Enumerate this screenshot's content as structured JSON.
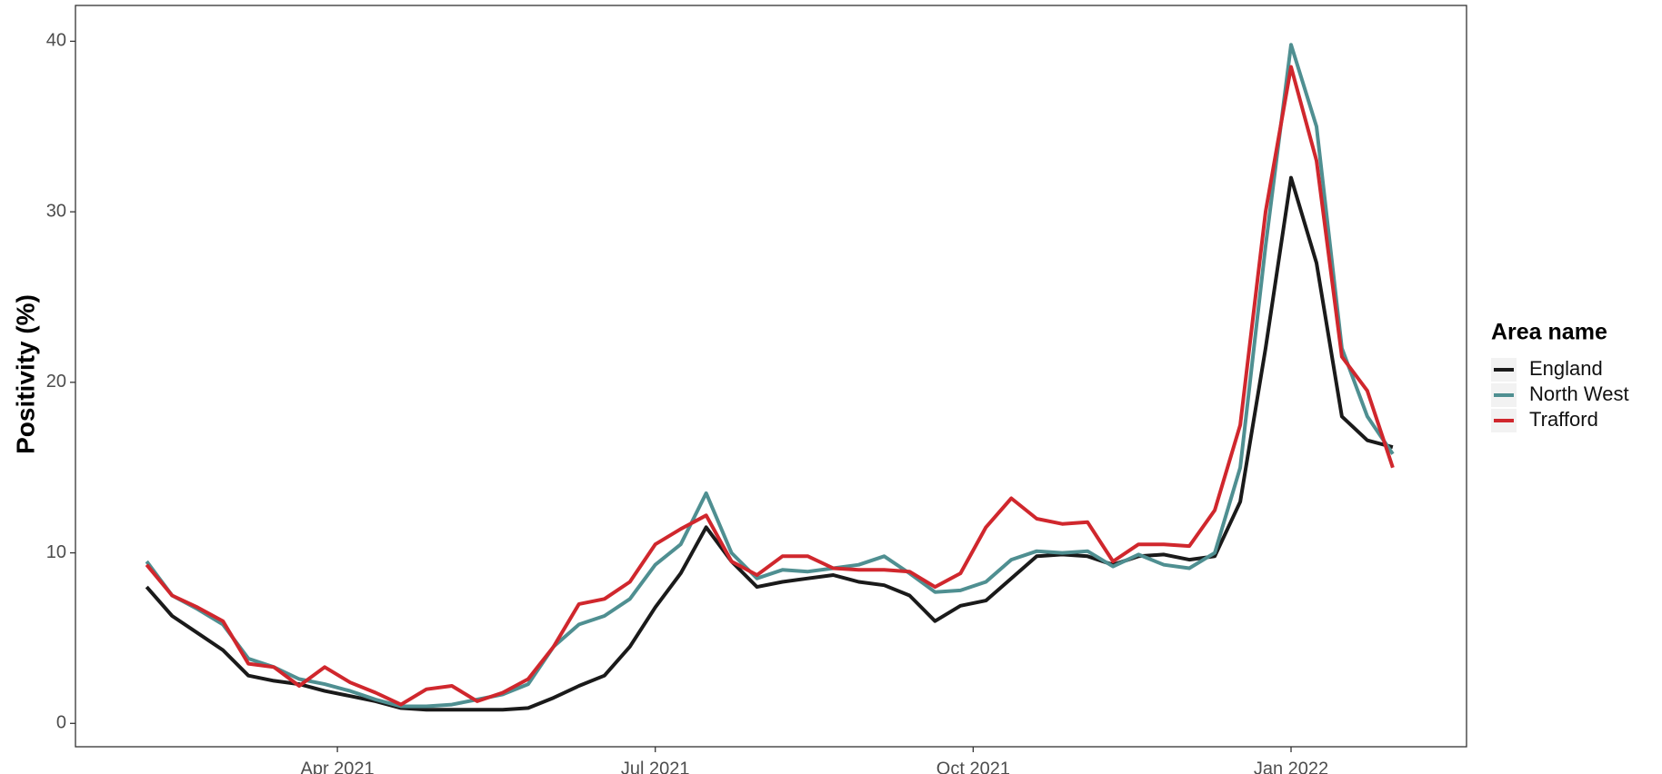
{
  "chart_data": {
    "type": "line",
    "y_label": "Positivity (%)",
    "legend_title": "Area name",
    "legend_position": "right",
    "grid": false,
    "x": [
      2021.1,
      2021.12,
      2021.14,
      2021.16,
      2021.18,
      2021.2,
      2021.22,
      2021.24,
      2021.26,
      2021.28,
      2021.3,
      2021.32,
      2021.34,
      2021.36,
      2021.38,
      2021.4,
      2021.42,
      2021.44,
      2021.46,
      2021.48,
      2021.5,
      2021.52,
      2021.54,
      2021.56,
      2021.58,
      2021.6,
      2021.62,
      2021.64,
      2021.66,
      2021.68,
      2021.7,
      2021.72,
      2021.74,
      2021.76,
      2021.78,
      2021.8,
      2021.82,
      2021.84,
      2021.86,
      2021.88,
      2021.9,
      2021.92,
      2021.94,
      2021.96,
      2021.98,
      2022.0,
      2022.02,
      2022.04,
      2022.06,
      2022.08
    ],
    "series": [
      {
        "name": "England",
        "color": "#1a1a1a",
        "values": [
          8.0,
          6.3,
          5.3,
          4.3,
          2.8,
          2.5,
          2.3,
          1.9,
          1.6,
          1.3,
          0.9,
          0.8,
          0.8,
          0.8,
          0.8,
          0.9,
          1.5,
          2.2,
          2.8,
          4.5,
          6.8,
          8.8,
          11.5,
          9.5,
          8.0,
          8.3,
          8.5,
          8.7,
          8.3,
          8.1,
          7.5,
          6.0,
          6.9,
          7.2,
          8.5,
          9.8,
          9.9,
          9.8,
          9.3,
          9.8,
          9.9,
          9.6,
          9.8,
          13,
          22,
          32,
          27,
          18,
          16.6,
          16.2
        ]
      },
      {
        "name": "North West",
        "color": "#4f8f91",
        "values": [
          9.5,
          7.5,
          6.7,
          5.8,
          3.8,
          3.3,
          2.6,
          2.3,
          1.9,
          1.4,
          1.0,
          1.0,
          1.1,
          1.4,
          1.7,
          2.3,
          4.5,
          5.8,
          6.3,
          7.3,
          9.3,
          10.5,
          13.5,
          10.0,
          8.5,
          9.0,
          8.9,
          9.1,
          9.3,
          9.8,
          8.8,
          7.7,
          7.8,
          8.3,
          9.6,
          10.1,
          10.0,
          10.1,
          9.2,
          9.9,
          9.3,
          9.1,
          10,
          15,
          28,
          39.8,
          35,
          22,
          18,
          15.8
        ]
      },
      {
        "name": "Trafford",
        "color": "#d0272d",
        "values": [
          9.3,
          7.5,
          6.8,
          6.0,
          3.5,
          3.3,
          2.2,
          3.3,
          2.4,
          1.8,
          1.1,
          2.0,
          2.2,
          1.3,
          1.8,
          2.6,
          4.5,
          7.0,
          7.3,
          8.3,
          10.5,
          11.4,
          12.2,
          9.5,
          8.7,
          9.8,
          9.8,
          9.1,
          9.0,
          9.0,
          8.9,
          8.0,
          8.8,
          11.5,
          13.2,
          12.0,
          11.7,
          11.8,
          9.5,
          10.5,
          10.5,
          10.4,
          12.5,
          17.5,
          30,
          38.5,
          33,
          21.5,
          19.5,
          15.0
        ]
      }
    ],
    "xlim": [
      2021.044,
      2022.138
    ],
    "xticks": [
      {
        "value": 2021.25,
        "label": "Apr 2021"
      },
      {
        "value": 2021.5,
        "label": "Jul 2021"
      },
      {
        "value": 2021.75,
        "label": "Oct 2021"
      },
      {
        "value": 2022.0,
        "label": "Jan 2022"
      }
    ],
    "ylim": [
      -1.37,
      42.1
    ],
    "yticks": [
      0,
      10,
      20,
      30,
      40
    ]
  }
}
